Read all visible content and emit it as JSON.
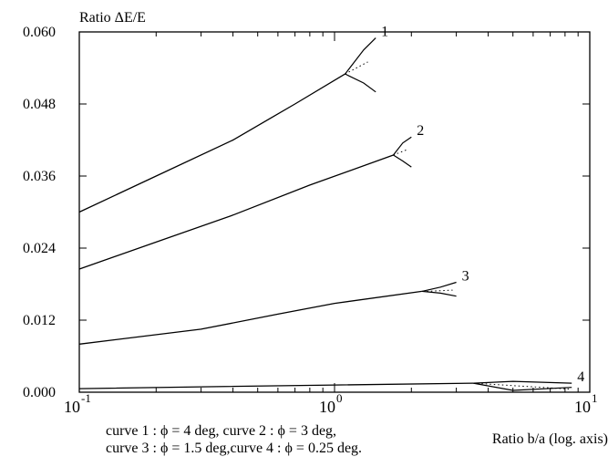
{
  "chart_data": {
    "type": "line",
    "ylabel": "Ratio  ΔE/E",
    "xlabel": "Ratio b/a  (log. axis)",
    "x_scale": "log",
    "xlim": [
      0.1,
      10
    ],
    "ylim": [
      0,
      0.06
    ],
    "y_ticks": [
      "0.000",
      "0.012",
      "0.024",
      "0.036",
      "0.048",
      "0.060"
    ],
    "x_ticks": [
      {
        "base": "10",
        "exp": "-1"
      },
      {
        "base": "10",
        "exp": "0"
      },
      {
        "base": "10",
        "exp": "1"
      }
    ],
    "caption": [
      "curve 1 : ϕ = 4 deg,   curve 2 : ϕ = 3 deg,",
      "curve 3 : ϕ = 1.5 deg,curve 4 : ϕ = 0.25 deg."
    ],
    "series": [
      {
        "name": "1",
        "x": [
          0.1,
          0.2,
          0.4,
          0.7,
          1.1
        ],
        "y": [
          0.03,
          0.036,
          0.042,
          0.048,
          0.053
        ],
        "branches": {
          "upper": {
            "x": [
              1.1,
              1.3,
              1.45
            ],
            "y": [
              0.053,
              0.057,
              0.059
            ]
          },
          "lower": {
            "x": [
              1.1,
              1.3,
              1.45
            ],
            "y": [
              0.053,
              0.0515,
              0.05
            ]
          },
          "dotted": {
            "x": [
              1.1,
              1.35
            ],
            "y": [
              0.053,
              0.055
            ]
          }
        }
      },
      {
        "name": "2",
        "x": [
          0.1,
          0.2,
          0.4,
          0.8,
          1.7
        ],
        "y": [
          0.0205,
          0.025,
          0.0295,
          0.0345,
          0.0395
        ],
        "branches": {
          "upper": {
            "x": [
              1.7,
              1.85,
              2.0
            ],
            "y": [
              0.0395,
              0.0415,
              0.0425
            ]
          },
          "lower": {
            "x": [
              1.7,
              1.85,
              2.0
            ],
            "y": [
              0.0395,
              0.0385,
              0.0375
            ]
          },
          "dotted": {
            "x": [
              1.7,
              1.95
            ],
            "y": [
              0.0395,
              0.0405
            ]
          }
        }
      },
      {
        "name": "3",
        "x": [
          0.1,
          0.3,
          0.6,
          1.0,
          2.2
        ],
        "y": [
          0.008,
          0.0105,
          0.013,
          0.0148,
          0.0168
        ],
        "branches": {
          "upper": {
            "x": [
              2.2,
              2.6,
              3.0
            ],
            "y": [
              0.0168,
              0.0175,
              0.0183
            ]
          },
          "lower": {
            "x": [
              2.2,
              2.6,
              3.0
            ],
            "y": [
              0.0168,
              0.0165,
              0.016
            ]
          },
          "dotted": {
            "x": [
              2.3,
              2.9
            ],
            "y": [
              0.0168,
              0.017
            ]
          }
        }
      },
      {
        "name": "4",
        "x": [
          0.1,
          0.3,
          1.0,
          3.5
        ],
        "y": [
          0.0006,
          0.0009,
          0.0012,
          0.0015
        ],
        "branches": {
          "upper": {
            "x": [
              3.5,
              5.0,
              8.5
            ],
            "y": [
              0.0015,
              0.0018,
              0.0015
            ]
          },
          "lower": {
            "x": [
              3.5,
              5.0,
              8.5
            ],
            "y": [
              0.0015,
              0.0003,
              0.0008
            ]
          },
          "dotted": {
            "x": [
              3.5,
              8.5
            ],
            "y": [
              0.0015,
              0.0005
            ]
          }
        }
      }
    ]
  }
}
